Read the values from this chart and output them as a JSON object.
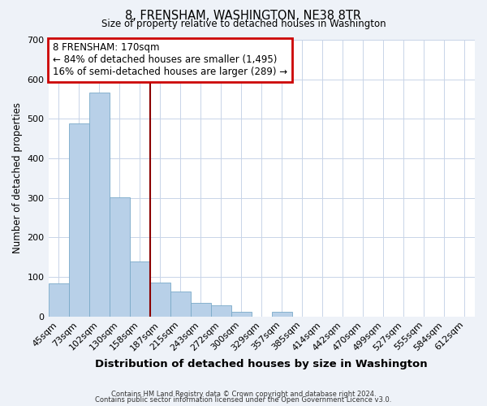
{
  "title": "8, FRENSHAM, WASHINGTON, NE38 8TR",
  "subtitle": "Size of property relative to detached houses in Washington",
  "xlabel": "Distribution of detached houses by size in Washington",
  "ylabel": "Number of detached properties",
  "bar_labels": [
    "45sqm",
    "73sqm",
    "102sqm",
    "130sqm",
    "158sqm",
    "187sqm",
    "215sqm",
    "243sqm",
    "272sqm",
    "300sqm",
    "329sqm",
    "357sqm",
    "385sqm",
    "414sqm",
    "442sqm",
    "470sqm",
    "499sqm",
    "527sqm",
    "555sqm",
    "584sqm",
    "612sqm"
  ],
  "bar_values": [
    84,
    489,
    566,
    302,
    140,
    86,
    63,
    35,
    29,
    12,
    0,
    11,
    0,
    0,
    0,
    0,
    0,
    0,
    0,
    0,
    0
  ],
  "bar_color": "#b8d0e8",
  "bar_edgecolor": "#7aaac8",
  "vline_x": 4.5,
  "vline_color": "#8b0000",
  "annotation_text": "8 FRENSHAM: 170sqm\n← 84% of detached houses are smaller (1,495)\n16% of semi-detached houses are larger (289) →",
  "annotation_box_edgecolor": "#cc0000",
  "annotation_box_facecolor": "#ffffff",
  "ylim": [
    0,
    700
  ],
  "yticks": [
    0,
    100,
    200,
    300,
    400,
    500,
    600,
    700
  ],
  "footer_line1": "Contains HM Land Registry data © Crown copyright and database right 2024.",
  "footer_line2": "Contains public sector information licensed under the Open Government Licence v3.0.",
  "background_color": "#eef2f8",
  "plot_background": "#ffffff",
  "grid_color": "#c8d4e8"
}
